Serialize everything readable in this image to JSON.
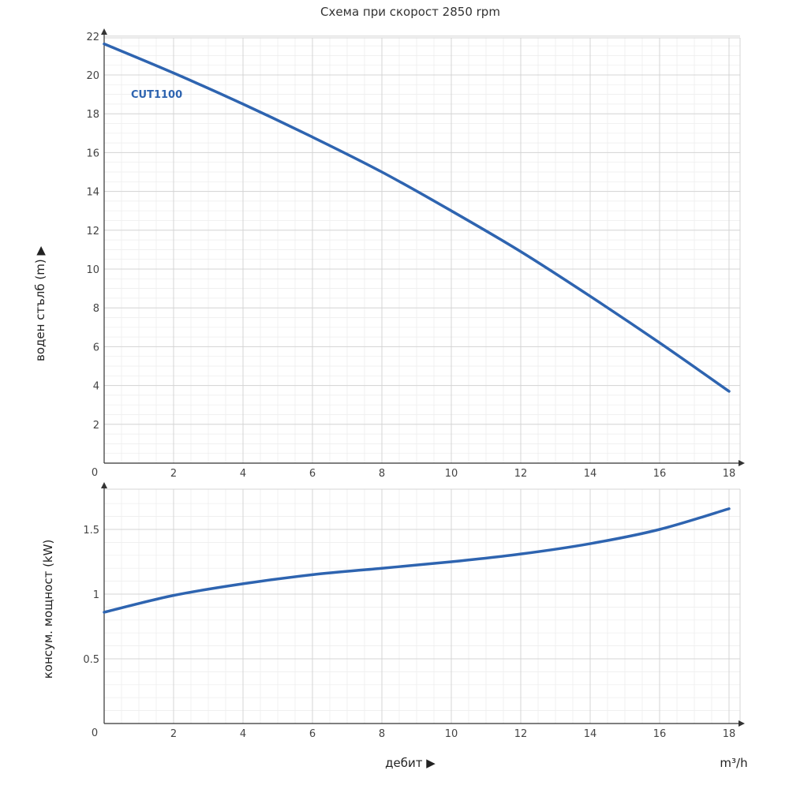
{
  "title": "Схема при скорост 2850 rpm",
  "colors": {
    "curve": "#2e64b0",
    "grid_major": "#d4d4d4",
    "grid_minor": "#ececec",
    "axis": "#333333"
  },
  "x_axis": {
    "label": "дебит ▶",
    "unit": "m³/h"
  },
  "chart_data": [
    {
      "type": "line",
      "name": "head",
      "title": "Схема при скорост 2850 rpm",
      "ylabel": "воден стълб (m) ▶",
      "xlim": [
        0,
        18.4
      ],
      "ylim": [
        0,
        22.2
      ],
      "x_ticks": [
        0,
        2,
        4,
        6,
        8,
        10,
        12,
        14,
        16,
        18
      ],
      "y_ticks": [
        2,
        4,
        6,
        8,
        10,
        12,
        14,
        16,
        18,
        20,
        22
      ],
      "grid": true,
      "series": [
        {
          "name": "CUT1100",
          "x": [
            0,
            2,
            4,
            6,
            8,
            10,
            12,
            14,
            16,
            18
          ],
          "y": [
            21.6,
            20.1,
            18.5,
            16.8,
            15.0,
            13.0,
            10.9,
            8.6,
            6.2,
            3.7
          ]
        }
      ]
    },
    {
      "type": "line",
      "name": "power",
      "ylabel": "консум. мощност (kW)",
      "xlim": [
        0,
        18.4
      ],
      "ylim": [
        0,
        1.8
      ],
      "x_ticks": [
        0,
        2,
        4,
        6,
        8,
        10,
        12,
        14,
        16,
        18
      ],
      "y_ticks": [
        0.5,
        1,
        1.5
      ],
      "y_tick_labels": [
        "0.5",
        "1",
        "1.5"
      ],
      "grid": true,
      "series": [
        {
          "x": [
            0,
            2,
            4,
            6,
            8,
            10,
            12,
            14,
            16,
            18
          ],
          "y": [
            0.86,
            0.99,
            1.08,
            1.15,
            1.2,
            1.25,
            1.31,
            1.39,
            1.5,
            1.66
          ]
        }
      ]
    }
  ]
}
